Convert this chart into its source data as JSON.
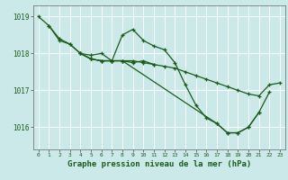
{
  "background_color": "#cbe9e9",
  "grid_color": "#ffffff",
  "line_color": "#1a5c1a",
  "marker_color": "#1a5c1a",
  "xlabel": "Graphe pression niveau de la mer (hPa)",
  "xlabel_fontsize": 6.5,
  "xlim": [
    -0.5,
    23.5
  ],
  "ylim": [
    1015.4,
    1019.3
  ],
  "yticks": [
    1016,
    1017,
    1018,
    1019
  ],
  "xticks": [
    0,
    1,
    2,
    3,
    4,
    5,
    6,
    7,
    8,
    9,
    10,
    11,
    12,
    13,
    14,
    15,
    16,
    17,
    18,
    19,
    20,
    21,
    22,
    23
  ],
  "series": [
    {
      "x": [
        0,
        1,
        2,
        3,
        4,
        5,
        6,
        7,
        8,
        9,
        10,
        11,
        12,
        13,
        14,
        15,
        16,
        17,
        18,
        19,
        20,
        21,
        22,
        23
      ],
      "y": [
        1019.0,
        1018.75,
        1018.4,
        1018.25,
        1018.0,
        1017.85,
        1017.8,
        1017.8,
        1017.8,
        1017.8,
        1017.75,
        1017.7,
        1017.65,
        1017.6,
        1017.5,
        1017.4,
        1017.3,
        1017.2,
        1017.1,
        1017.0,
        1016.9,
        1016.85,
        1017.15,
        1017.2
      ]
    },
    {
      "x": [
        1,
        2,
        3,
        4,
        5,
        6,
        7,
        8,
        9,
        10,
        11,
        12,
        13,
        14,
        15,
        16,
        17,
        18,
        19,
        20,
        21,
        22
      ],
      "y": [
        1018.75,
        1018.35,
        1018.25,
        1018.0,
        1017.95,
        1018.0,
        1017.8,
        1018.5,
        1018.65,
        1018.35,
        1018.2,
        1018.1,
        1017.75,
        1017.15,
        1016.6,
        1016.25,
        1016.1,
        1015.85,
        1015.85,
        1016.0,
        1016.4,
        1016.95
      ]
    },
    {
      "x": [
        4,
        5,
        6,
        7,
        8,
        9,
        10,
        11
      ],
      "y": [
        1018.0,
        1017.85,
        1017.8,
        1017.8,
        1017.8,
        1017.75,
        1017.8,
        1017.7
      ]
    },
    {
      "x": [
        4,
        5,
        6,
        7,
        8,
        17,
        18,
        19,
        20,
        21
      ],
      "y": [
        1018.0,
        1017.85,
        1017.8,
        1017.8,
        1017.8,
        1016.1,
        1015.85,
        1015.85,
        1016.0,
        1016.4
      ]
    }
  ]
}
